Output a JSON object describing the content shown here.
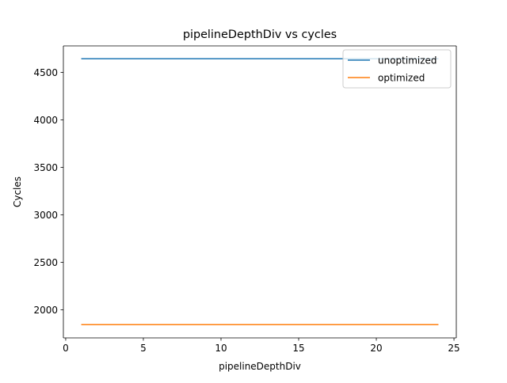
{
  "chart_data": {
    "type": "line",
    "title": "pipelineDepthDiv vs cycles",
    "xlabel": "pipelineDepthDiv",
    "ylabel": "Cycles",
    "xlim": [
      -0.15,
      25.15
    ],
    "ylim": [
      1705,
      4780
    ],
    "xticks": [
      0,
      5,
      10,
      15,
      20,
      25
    ],
    "xtick_labels": [
      "0",
      "5",
      "10",
      "15",
      "20",
      "25"
    ],
    "yticks": [
      2000,
      2500,
      3000,
      3500,
      4000,
      4500
    ],
    "ytick_labels": [
      "2000",
      "2500",
      "3000",
      "3500",
      "4000",
      "4500"
    ],
    "grid": false,
    "legend_position": "top-right",
    "x": [
      1,
      2,
      3,
      4,
      5,
      6,
      7,
      8,
      9,
      10,
      11,
      12,
      13,
      14,
      15,
      16,
      17,
      18,
      19,
      20,
      21,
      22,
      23,
      24
    ],
    "series": [
      {
        "name": "unoptimized",
        "color": "#1f77b4",
        "values": [
          4645,
          4645,
          4645,
          4645,
          4645,
          4645,
          4645,
          4645,
          4645,
          4645,
          4645,
          4645,
          4645,
          4645,
          4645,
          4645,
          4645,
          4645,
          4645,
          4645,
          4645,
          4645,
          4645,
          4645
        ]
      },
      {
        "name": "optimized",
        "color": "#ff7f0e",
        "values": [
          1845,
          1845,
          1845,
          1845,
          1845,
          1845,
          1845,
          1845,
          1845,
          1845,
          1845,
          1845,
          1845,
          1845,
          1845,
          1845,
          1845,
          1845,
          1845,
          1845,
          1845,
          1845,
          1845,
          1845
        ]
      }
    ]
  }
}
